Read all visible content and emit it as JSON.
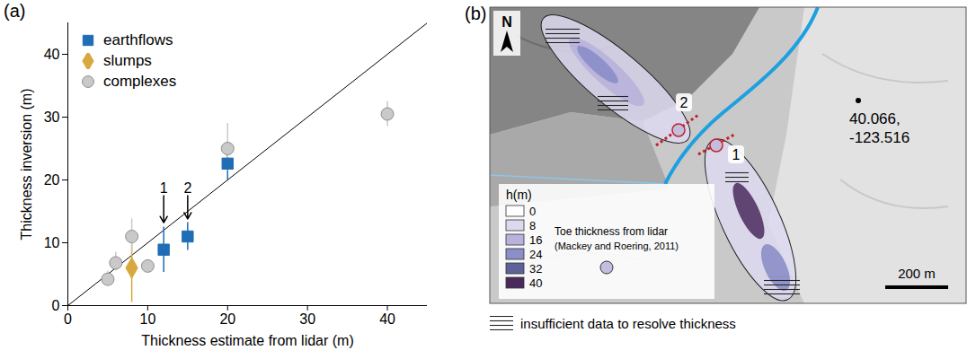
{
  "chart_data": {
    "type": "scatter",
    "panel_label": "(a)",
    "xlabel": "Thickness estimate from lidar (m)",
    "ylabel": "Thickness inversion (m)",
    "xlim": [
      0,
      45
    ],
    "ylim": [
      0,
      45
    ],
    "xticks": [
      0,
      10,
      20,
      30,
      40
    ],
    "yticks": [
      0,
      10,
      20,
      30,
      40
    ],
    "legend": "top-left",
    "series": [
      {
        "name": "earthflows",
        "color": "#1f6db5",
        "marker": "square",
        "x": [
          12,
          15,
          20
        ],
        "values": [
          8.9,
          11,
          22.6
        ],
        "error_low": [
          5.3,
          8.8,
          19.8
        ],
        "error_high": [
          12.5,
          13.2,
          25.5
        ]
      },
      {
        "name": "slumps",
        "color": "#d8a83e",
        "marker": "diamond",
        "x": [
          8
        ],
        "values": [
          6
        ],
        "error_low": [
          0.5
        ],
        "error_high": [
          11
        ]
      },
      {
        "name": "complexes",
        "color": "#c9c9c9",
        "marker": "circle",
        "x": [
          5,
          6,
          8,
          10,
          20,
          40
        ],
        "values": [
          4.2,
          6.8,
          11,
          6.3,
          25,
          30.5
        ],
        "error_low": [
          3.2,
          5.5,
          8.5,
          5.3,
          21.5,
          28.5
        ],
        "error_high": [
          5.5,
          8.5,
          13.8,
          7.3,
          29,
          32.5
        ]
      }
    ],
    "reference_line": {
      "x": [
        0,
        45
      ],
      "y": [
        0,
        45
      ]
    },
    "annotations": [
      {
        "text": "1",
        "x": 12,
        "y": 17.5,
        "y_tip": 13.2
      },
      {
        "text": "2",
        "x": 15,
        "y": 17.5,
        "y_tip": 13.8
      }
    ]
  },
  "map_panel": {
    "panel_label": "(b)",
    "north": "N",
    "sites": [
      "1",
      "2"
    ],
    "coordinate_label": [
      "40.066,",
      "-123.516"
    ],
    "legend": {
      "title": "h(m)",
      "values": [
        0,
        8,
        16,
        24,
        32,
        40
      ],
      "colors": [
        "#ffffff",
        "#dcd9ee",
        "#b8b2dc",
        "#8b8ec8",
        "#5e6299",
        "#4a2a5c"
      ],
      "toe_label": "Toe thickness from lidar",
      "toe_source": "(Mackey and Roering, 2011)",
      "toe_color": "#c3bde0"
    },
    "scale_bar": "200 m",
    "hatch_label": "insufficient data to resolve thickness"
  }
}
